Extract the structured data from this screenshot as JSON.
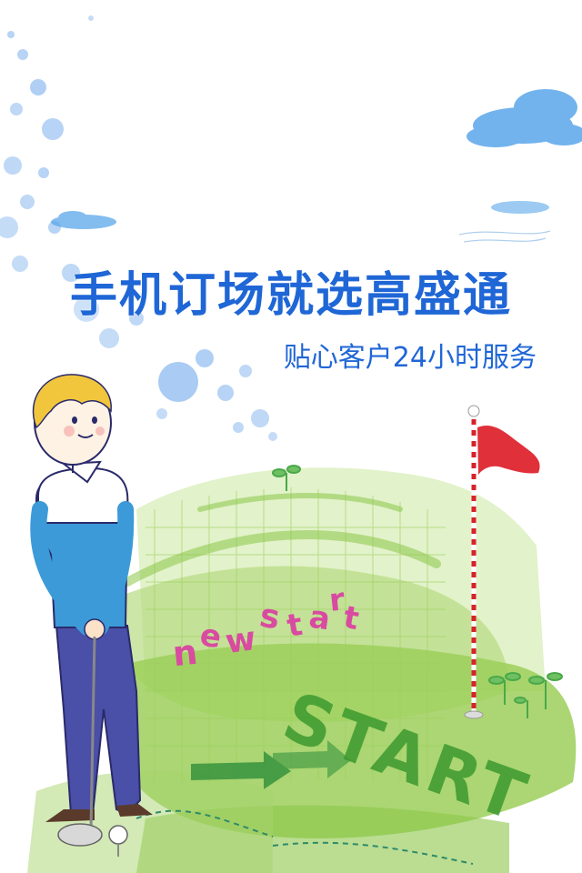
{
  "headline": "手机订场就选高盛通",
  "subline": "贴心客户24小时服务",
  "art": {
    "newstart_letters": [
      "n",
      "e",
      "w",
      "s",
      "t",
      "a",
      "r",
      "t"
    ],
    "start_text": "START"
  },
  "colors": {
    "headline": "#1f66d6",
    "bubble": "#6fa8ec",
    "grass": "#9ccf5a",
    "grass_dark": "#3c9a2e",
    "flag": "#e0303a",
    "sweater": "#3c9ad8",
    "pants": "#4a4fa8",
    "hair": "#f2c63c",
    "newstart": "#d94aa1"
  },
  "icons": [
    "cloud-icon",
    "golf-flag-icon",
    "golfer-illustration",
    "golf-ball-icon",
    "sprout-icon",
    "arrow-icon"
  ]
}
